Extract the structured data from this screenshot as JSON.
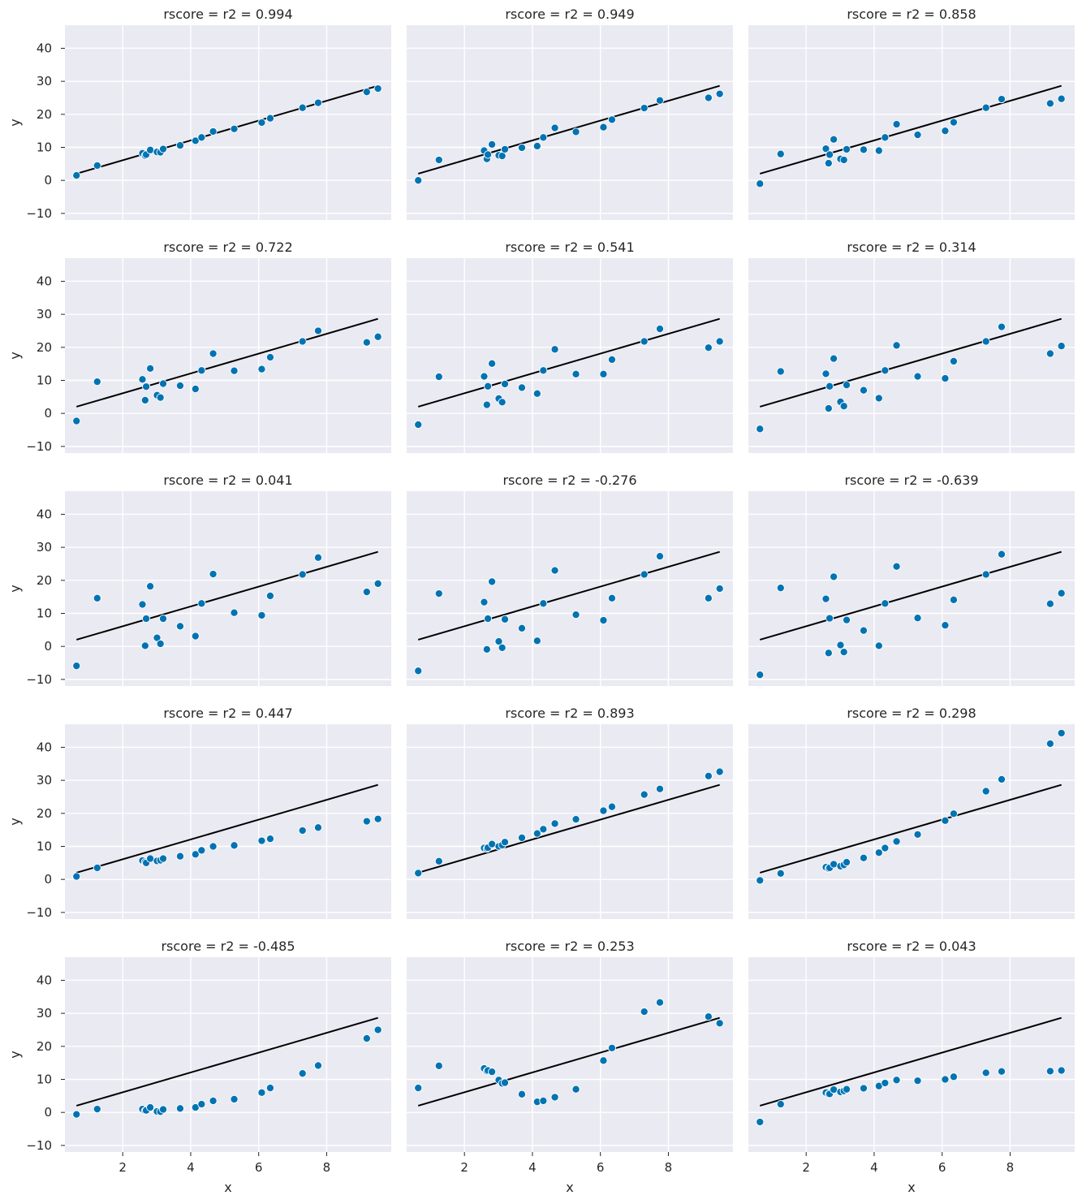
{
  "figure": {
    "xlabel": "x",
    "ylabel": "y",
    "xlim": [
      0.3,
      9.9
    ],
    "ylim": [
      -12,
      47
    ],
    "xticks": [
      2,
      4,
      6,
      8
    ],
    "yticks": [
      -10,
      0,
      10,
      20,
      30,
      40
    ],
    "grid": true,
    "background": "#eaeaf2",
    "point_color": "#0173b2",
    "line_color": "#000000",
    "regression_line": {
      "slope": 3.0,
      "intercept": 0.1
    }
  },
  "chart_data": [
    {
      "type": "scatter",
      "title": "rscore = r2 = 0.994",
      "x": [
        0.64,
        1.25,
        2.58,
        2.66,
        2.69,
        2.81,
        3.01,
        3.11,
        3.19,
        3.69,
        4.14,
        4.32,
        4.66,
        5.28,
        6.09,
        6.34,
        7.29,
        7.75,
        9.18,
        9.51
      ],
      "y": [
        1.5,
        4.5,
        8.2,
        7.5,
        7.8,
        9.2,
        8.6,
        8.5,
        9.5,
        10.6,
        12.0,
        13.0,
        14.8,
        15.6,
        17.5,
        18.8,
        22.0,
        23.5,
        26.8,
        27.8
      ]
    },
    {
      "type": "scatter",
      "title": "rscore = r2 = 0.949",
      "x": [
        0.64,
        1.25,
        2.58,
        2.66,
        2.69,
        2.81,
        3.01,
        3.11,
        3.19,
        3.69,
        4.14,
        4.32,
        4.66,
        5.28,
        6.09,
        6.34,
        7.29,
        7.75,
        9.18,
        9.51
      ],
      "y": [
        0.0,
        6.2,
        9.0,
        6.5,
        7.8,
        10.9,
        7.6,
        7.4,
        9.4,
        9.9,
        10.4,
        13.0,
        15.9,
        14.7,
        16.1,
        18.4,
        21.9,
        24.2,
        25.0,
        26.2
      ]
    },
    {
      "type": "scatter",
      "title": "rscore = r2 = 0.858",
      "x": [
        0.64,
        1.25,
        2.58,
        2.66,
        2.69,
        2.81,
        3.01,
        3.11,
        3.19,
        3.69,
        4.14,
        4.32,
        4.66,
        5.28,
        6.09,
        6.34,
        7.29,
        7.75,
        9.18,
        9.51
      ],
      "y": [
        -1.0,
        8.0,
        9.6,
        5.2,
        7.8,
        12.4,
        6.5,
        6.2,
        9.4,
        9.3,
        9.0,
        13.0,
        17.0,
        13.8,
        15.0,
        17.6,
        22.0,
        24.6,
        23.3,
        24.7
      ]
    },
    {
      "type": "scatter",
      "title": "rscore = r2 = 0.722",
      "x": [
        0.64,
        1.25,
        2.58,
        2.66,
        2.69,
        2.81,
        3.01,
        3.11,
        3.19,
        3.69,
        4.14,
        4.32,
        4.66,
        5.28,
        6.09,
        6.34,
        7.29,
        7.75,
        9.18,
        9.51
      ],
      "y": [
        -2.3,
        9.6,
        10.3,
        4.0,
        8.1,
        13.6,
        5.5,
        4.8,
        9.0,
        8.4,
        7.4,
        13.0,
        18.1,
        12.9,
        13.4,
        17.0,
        21.8,
        25.0,
        21.5,
        23.2
      ]
    },
    {
      "type": "scatter",
      "title": "rscore = r2 = 0.541",
      "x": [
        0.64,
        1.25,
        2.58,
        2.66,
        2.69,
        2.81,
        3.01,
        3.11,
        3.19,
        3.69,
        4.14,
        4.32,
        4.66,
        5.28,
        6.09,
        6.34,
        7.29,
        7.75,
        9.18,
        9.51
      ],
      "y": [
        -3.4,
        11.1,
        11.2,
        2.6,
        8.2,
        15.1,
        4.5,
        3.4,
        8.9,
        7.8,
        6.0,
        13.0,
        19.4,
        11.9,
        11.9,
        16.3,
        21.8,
        25.6,
        19.9,
        21.8
      ]
    },
    {
      "type": "scatter",
      "title": "rscore = r2 = 0.314",
      "x": [
        0.64,
        1.25,
        2.58,
        2.66,
        2.69,
        2.81,
        3.01,
        3.11,
        3.19,
        3.69,
        4.14,
        4.32,
        4.66,
        5.28,
        6.09,
        6.34,
        7.29,
        7.75,
        9.18,
        9.51
      ],
      "y": [
        -4.7,
        12.7,
        12.0,
        1.5,
        8.2,
        16.6,
        3.5,
        2.2,
        8.6,
        7.0,
        4.6,
        13.0,
        20.6,
        11.2,
        10.6,
        15.8,
        21.8,
        26.2,
        18.1,
        20.4
      ]
    },
    {
      "type": "scatter",
      "title": "rscore = r2 = 0.041",
      "x": [
        0.64,
        1.25,
        2.58,
        2.66,
        2.69,
        2.81,
        3.01,
        3.11,
        3.19,
        3.69,
        4.14,
        4.32,
        4.66,
        5.28,
        6.09,
        6.34,
        7.29,
        7.75,
        9.18,
        9.51
      ],
      "y": [
        -5.9,
        14.6,
        12.7,
        0.2,
        8.4,
        18.2,
        2.6,
        0.8,
        8.4,
        6.1,
        3.1,
        13.0,
        21.9,
        10.2,
        9.4,
        15.3,
        21.8,
        26.9,
        16.5,
        19.0
      ]
    },
    {
      "type": "scatter",
      "title": "rscore = r2 = -0.276",
      "x": [
        0.64,
        1.25,
        2.58,
        2.66,
        2.69,
        2.81,
        3.01,
        3.11,
        3.19,
        3.69,
        4.14,
        4.32,
        4.66,
        5.28,
        6.09,
        6.34,
        7.29,
        7.75,
        9.18,
        9.51
      ],
      "y": [
        -7.4,
        16.0,
        13.4,
        -0.9,
        8.4,
        19.6,
        1.5,
        -0.4,
        8.2,
        5.5,
        1.7,
        13.0,
        23.0,
        9.6,
        7.9,
        14.6,
        21.8,
        27.3,
        14.6,
        17.5
      ]
    },
    {
      "type": "scatter",
      "title": "rscore = r2 = -0.639",
      "x": [
        0.64,
        1.25,
        2.58,
        2.66,
        2.69,
        2.81,
        3.01,
        3.11,
        3.19,
        3.69,
        4.14,
        4.32,
        4.66,
        5.28,
        6.09,
        6.34,
        7.29,
        7.75,
        9.18,
        9.51
      ],
      "y": [
        -8.6,
        17.7,
        14.4,
        -2.0,
        8.5,
        21.1,
        0.4,
        -1.7,
        8.0,
        4.8,
        0.2,
        13.0,
        24.2,
        8.6,
        6.4,
        14.1,
        21.8,
        27.9,
        12.9,
        16.1
      ]
    },
    {
      "type": "scatter",
      "title": "rscore = r2 = 0.447",
      "x": [
        0.64,
        1.25,
        2.58,
        2.66,
        2.69,
        2.81,
        3.01,
        3.11,
        3.19,
        3.69,
        4.14,
        4.32,
        4.66,
        5.28,
        6.09,
        6.34,
        7.29,
        7.75,
        9.18,
        9.51
      ],
      "y": [
        0.9,
        3.5,
        5.7,
        5.3,
        5.0,
        6.3,
        5.6,
        5.8,
        6.3,
        7.0,
        7.6,
        8.8,
        10.0,
        10.3,
        11.7,
        12.3,
        14.8,
        15.7,
        17.6,
        18.3
      ]
    },
    {
      "type": "scatter",
      "title": "rscore = r2 = 0.893",
      "x": [
        0.64,
        1.25,
        2.58,
        2.66,
        2.69,
        2.81,
        3.01,
        3.11,
        3.19,
        3.69,
        4.14,
        4.32,
        4.66,
        5.28,
        6.09,
        6.34,
        7.29,
        7.75,
        9.18,
        9.51
      ],
      "y": [
        1.9,
        5.5,
        9.5,
        9.3,
        9.6,
        10.7,
        10.0,
        10.4,
        11.3,
        12.6,
        13.9,
        15.2,
        16.9,
        18.2,
        20.8,
        22.0,
        25.7,
        27.4,
        31.3,
        32.6
      ]
    },
    {
      "type": "scatter",
      "title": "rscore = r2 = 0.298",
      "x": [
        0.64,
        1.25,
        2.58,
        2.66,
        2.69,
        2.81,
        3.01,
        3.11,
        3.19,
        3.69,
        4.14,
        4.32,
        4.66,
        5.28,
        6.09,
        6.34,
        7.29,
        7.75,
        9.18,
        9.51
      ],
      "y": [
        -0.3,
        1.8,
        3.7,
        3.3,
        3.5,
        4.6,
        4.0,
        4.4,
        5.2,
        6.5,
        8.1,
        9.5,
        11.5,
        13.6,
        17.8,
        19.9,
        26.7,
        30.3,
        41.1,
        44.3
      ]
    },
    {
      "type": "scatter",
      "title": "rscore = r2 = -0.485",
      "x": [
        0.64,
        1.25,
        2.58,
        2.66,
        2.69,
        2.81,
        3.01,
        3.11,
        3.19,
        3.69,
        4.14,
        4.32,
        4.66,
        5.28,
        6.09,
        6.34,
        7.29,
        7.75,
        9.18,
        9.51
      ],
      "y": [
        -0.6,
        1.0,
        1.0,
        0.5,
        0.6,
        1.5,
        0.3,
        0.2,
        0.9,
        1.2,
        1.5,
        2.5,
        3.5,
        4.0,
        6.0,
        7.4,
        11.8,
        14.2,
        22.4,
        25.0
      ]
    },
    {
      "type": "scatter",
      "title": "rscore = r2 = 0.253",
      "x": [
        0.64,
        1.25,
        2.58,
        2.66,
        2.69,
        2.81,
        3.01,
        3.11,
        3.19,
        3.69,
        4.14,
        4.32,
        4.66,
        5.28,
        6.09,
        6.34,
        7.29,
        7.75,
        9.18,
        9.51
      ],
      "y": [
        7.4,
        14.1,
        13.3,
        12.5,
        12.7,
        12.3,
        9.8,
        8.8,
        9.0,
        5.5,
        3.2,
        3.5,
        4.6,
        7.0,
        15.7,
        19.5,
        30.5,
        33.3,
        29.0,
        27.0
      ]
    },
    {
      "type": "scatter",
      "title": "rscore = r2 = 0.043",
      "x": [
        0.64,
        1.25,
        2.58,
        2.66,
        2.69,
        2.81,
        3.01,
        3.11,
        3.19,
        3.69,
        4.14,
        4.32,
        4.66,
        5.28,
        6.09,
        6.34,
        7.29,
        7.75,
        9.18,
        9.51
      ],
      "y": [
        -2.9,
        2.5,
        6.0,
        5.5,
        5.6,
        6.9,
        6.2,
        6.5,
        7.0,
        7.3,
        8.0,
        8.9,
        9.8,
        9.6,
        10.0,
        10.8,
        12.0,
        12.4,
        12.5,
        12.7
      ]
    }
  ]
}
